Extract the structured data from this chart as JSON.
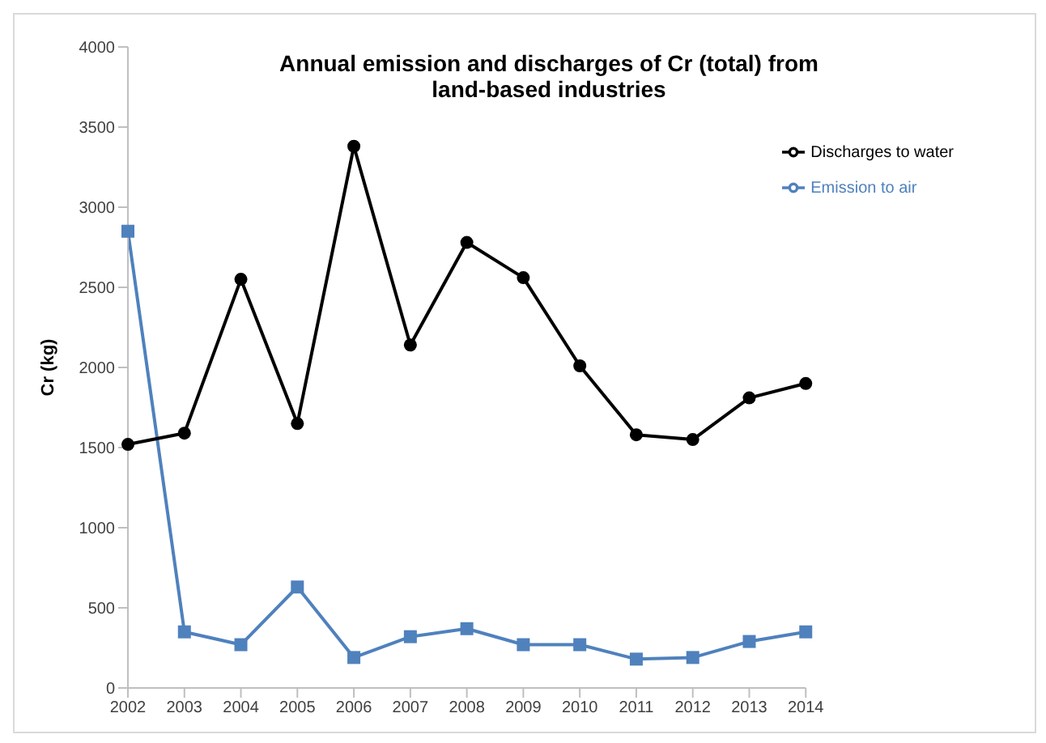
{
  "chart_data": {
    "type": "line",
    "title": "Annual emission and discharges of Cr (total) from land-based industries",
    "ylabel": "Cr (kg)",
    "categories": [
      "2002",
      "2003",
      "2004",
      "2005",
      "2006",
      "2007",
      "2008",
      "2009",
      "2010",
      "2011",
      "2012",
      "2013",
      "2014"
    ],
    "series": [
      {
        "name": "Emission to air",
        "color": "#4f81bd",
        "marker": "square",
        "values": [
          2850,
          350,
          270,
          630,
          190,
          320,
          370,
          270,
          270,
          180,
          190,
          290,
          350
        ]
      },
      {
        "name": "Discharges to water",
        "color": "#000000",
        "marker": "circle",
        "values": [
          1520,
          1590,
          2550,
          1650,
          3380,
          2140,
          2780,
          2560,
          2010,
          1580,
          1550,
          1810,
          1900
        ]
      }
    ],
    "ylim": [
      0,
      4000
    ],
    "yticks": [
      0,
      500,
      1000,
      1500,
      2000,
      2500,
      3000,
      3500,
      4000
    ],
    "grid": false,
    "legend": "top right"
  }
}
